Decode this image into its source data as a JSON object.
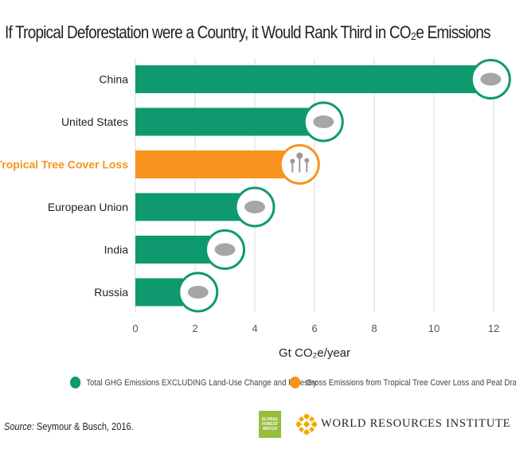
{
  "title": "If Tropical Deforestation were a Country, it Would Rank Third in CO₂e Emissions",
  "chart_data": {
    "type": "bar",
    "orientation": "horizontal",
    "categories": [
      "China",
      "United States",
      "Tropical Tree Cover Loss",
      "European Union",
      "India",
      "Russia"
    ],
    "values": [
      11.9,
      6.3,
      5.5,
      4.0,
      3.0,
      2.1
    ],
    "highlight": "Tropical Tree Cover Loss",
    "xlabel": "Gt CO₂e/year",
    "xlim": [
      0,
      12
    ],
    "xticks": [
      0,
      2,
      4,
      6,
      8,
      10,
      12
    ],
    "grid": true,
    "colors": {
      "country": "#0e9a6e",
      "tropical": "#f7931e"
    },
    "series": [
      {
        "name": "Total GHG Emissions EXCLUDING Land-Use Change and Forestry",
        "color": "#0e9a6e"
      },
      {
        "name": "Gross Emissions from Tropical Tree Cover Loss and Peat Drainage",
        "color": "#f7931e"
      }
    ]
  },
  "source_label": "Source:",
  "source_text": " Seymour & Busch, 2016.",
  "gfw_lines": [
    "GLOBAL",
    "FOREST",
    "WATCH"
  ],
  "wri_text": "WORLD RESOURCES INSTITUTE"
}
